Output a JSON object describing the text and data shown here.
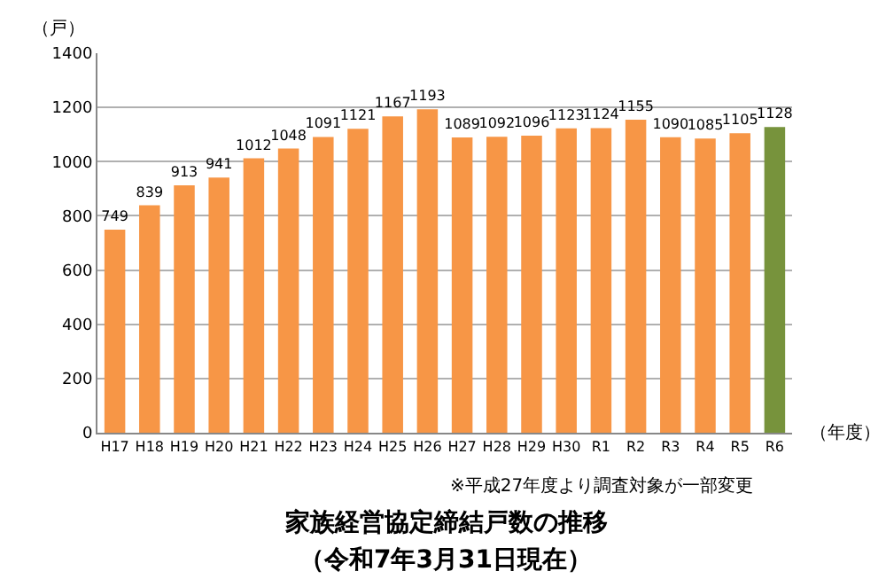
{
  "chart_data": {
    "type": "bar",
    "title": "家族経営協定締結戸数の推移",
    "subtitle": "（令和7年3月31日現在）",
    "ylabel": "（戸）",
    "xlabel": "（年度）",
    "annotations": [
      "※平成27年度より調査対象が一部変更"
    ],
    "categories": [
      "H17",
      "H18",
      "H19",
      "H20",
      "H21",
      "H22",
      "H23",
      "H24",
      "H25",
      "H26",
      "H27",
      "H28",
      "H29",
      "H30",
      "R1",
      "R2",
      "R3",
      "R4",
      "R5",
      "R6"
    ],
    "values": [
      749,
      839,
      913,
      941,
      1012,
      1048,
      1091,
      1121,
      1167,
      1193,
      1089,
      1092,
      1096,
      1123,
      1124,
      1155,
      1090,
      1085,
      1105,
      1128
    ],
    "colors": [
      "#f79646",
      "#f79646",
      "#f79646",
      "#f79646",
      "#f79646",
      "#f79646",
      "#f79646",
      "#f79646",
      "#f79646",
      "#f79646",
      "#f79646",
      "#f79646",
      "#f79646",
      "#f79646",
      "#f79646",
      "#f79646",
      "#f79646",
      "#f79646",
      "#f79646",
      "#77933c"
    ],
    "ylim": [
      0,
      1400
    ],
    "yticks": [
      0,
      200,
      400,
      600,
      800,
      1000,
      1200,
      1400
    ],
    "grid": "y",
    "data_labels": true
  }
}
